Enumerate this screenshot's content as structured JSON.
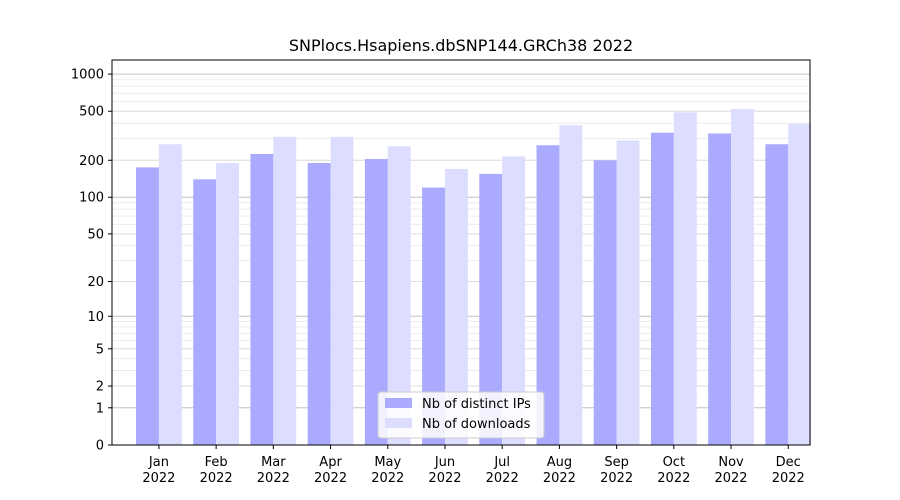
{
  "chart_data": {
    "type": "bar",
    "title": "SNPlocs.Hsapiens.dbSNP144.GRCh38 2022",
    "categories": [
      [
        "Jan",
        "2022"
      ],
      [
        "Feb",
        "2022"
      ],
      [
        "Mar",
        "2022"
      ],
      [
        "Apr",
        "2022"
      ],
      [
        "May",
        "2022"
      ],
      [
        "Jun",
        "2022"
      ],
      [
        "Jul",
        "2022"
      ],
      [
        "Aug",
        "2022"
      ],
      [
        "Sep",
        "2022"
      ],
      [
        "Oct",
        "2022"
      ],
      [
        "Nov",
        "2022"
      ],
      [
        "Dec",
        "2022"
      ]
    ],
    "series": [
      {
        "name": "Nb of distinct IPs",
        "color": "#aaaaff",
        "values": [
          175,
          140,
          225,
          190,
          205,
          120,
          155,
          265,
          200,
          335,
          330,
          270
        ]
      },
      {
        "name": "Nb of downloads",
        "color": "#ddddff",
        "values": [
          270,
          190,
          310,
          310,
          260,
          170,
          215,
          385,
          290,
          490,
          520,
          395
        ]
      }
    ],
    "yscale": "log1p",
    "yticks": [
      0,
      1,
      2,
      5,
      10,
      20,
      50,
      100,
      200,
      500,
      1000
    ],
    "ylim": [
      0,
      1300
    ],
    "grid": true,
    "legend_position": "bottom-center"
  }
}
